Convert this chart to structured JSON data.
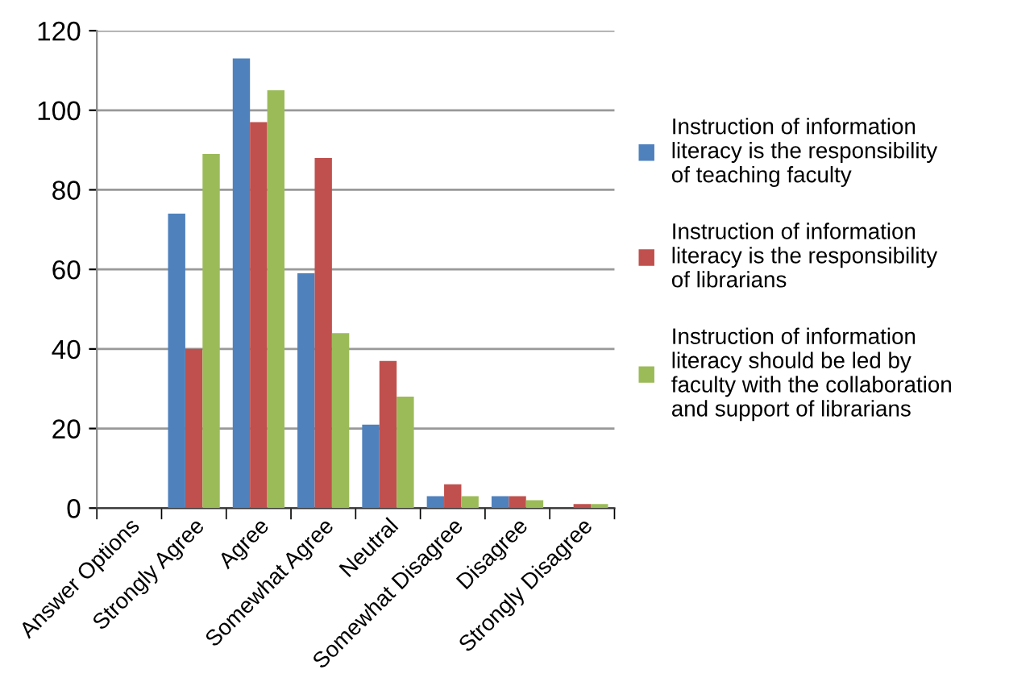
{
  "chart_data": {
    "type": "bar",
    "categories": [
      "Answer Options",
      "Strongly Agree",
      "Agree",
      "Somewhat Agree",
      "Neutral",
      "Somewhat Disagree",
      "Disagree",
      "Strongly Disagree"
    ],
    "series": [
      {
        "name": "Instruction of information literacy is the responsibility of teaching faculty",
        "color": "#4f81bd",
        "values": [
          null,
          74,
          113,
          59,
          21,
          3,
          3,
          0
        ]
      },
      {
        "name": "Instruction of information literacy is the responsibility of librarians",
        "color": "#c0504d",
        "values": [
          null,
          40,
          97,
          88,
          37,
          6,
          3,
          1
        ]
      },
      {
        "name": "Instruction of information literacy should be led by faculty with the collaboration and support of librarians",
        "color": "#9bbb59",
        "values": [
          null,
          89,
          105,
          44,
          28,
          3,
          2,
          1
        ]
      }
    ],
    "ylim": [
      0,
      120
    ],
    "yticks": [
      0,
      20,
      40,
      60,
      80,
      100,
      120
    ],
    "grid": "y",
    "legend": "right"
  }
}
